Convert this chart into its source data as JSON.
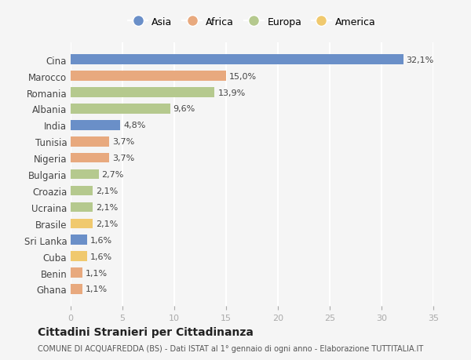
{
  "countries": [
    "Cina",
    "Marocco",
    "Romania",
    "Albania",
    "India",
    "Tunisia",
    "Nigeria",
    "Bulgaria",
    "Croazia",
    "Ucraina",
    "Brasile",
    "Sri Lanka",
    "Cuba",
    "Benin",
    "Ghana"
  ],
  "values": [
    32.1,
    15.0,
    13.9,
    9.6,
    4.8,
    3.7,
    3.7,
    2.7,
    2.1,
    2.1,
    2.1,
    1.6,
    1.6,
    1.1,
    1.1
  ],
  "labels": [
    "32,1%",
    "15,0%",
    "13,9%",
    "9,6%",
    "4,8%",
    "3,7%",
    "3,7%",
    "2,7%",
    "2,1%",
    "2,1%",
    "2,1%",
    "1,6%",
    "1,6%",
    "1,1%",
    "1,1%"
  ],
  "continents": [
    "Asia",
    "Africa",
    "Europa",
    "Europa",
    "Asia",
    "Africa",
    "Africa",
    "Europa",
    "Europa",
    "Europa",
    "America",
    "Asia",
    "America",
    "Africa",
    "Africa"
  ],
  "colors": {
    "Asia": "#6a8fc8",
    "Africa": "#e8a97e",
    "Europa": "#b5c98e",
    "America": "#f0c96e"
  },
  "legend_order": [
    "Asia",
    "Africa",
    "Europa",
    "America"
  ],
  "title": "Cittadini Stranieri per Cittadinanza",
  "subtitle": "COMUNE DI ACQUAFREDDA (BS) - Dati ISTAT al 1° gennaio di ogni anno - Elaborazione TUTTITALIA.IT",
  "xlim": [
    0,
    35
  ],
  "xticks": [
    0,
    5,
    10,
    15,
    20,
    25,
    30,
    35
  ],
  "bg_color": "#f5f5f5",
  "grid_color": "#ffffff",
  "bar_height": 0.6
}
